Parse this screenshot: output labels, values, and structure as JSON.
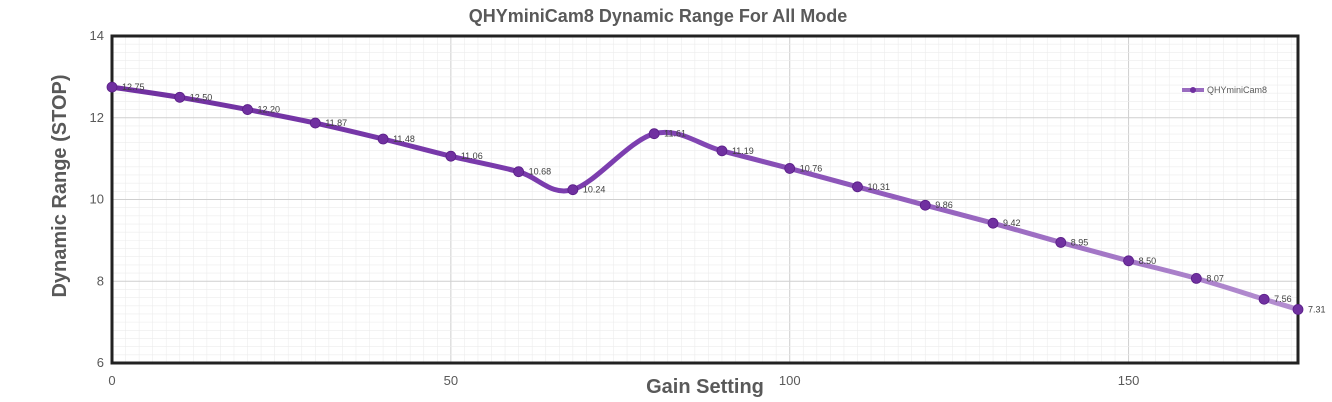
{
  "chart_data": {
    "type": "line",
    "title": "QHYminiCam8 Dynamic Range For All Mode",
    "xlabel": "Gain Setting",
    "ylabel": "Dynamic Range (STOP)",
    "xlim": [
      0,
      175
    ],
    "ylim": [
      6,
      14
    ],
    "xticks": [
      0,
      50,
      100,
      150
    ],
    "yticks": [
      6,
      8,
      10,
      12,
      14
    ],
    "grid": true,
    "legend_position": "top-right",
    "series": [
      {
        "name": "QHYminiCam8",
        "color": "#7030A0",
        "x": [
          0,
          10,
          20,
          30,
          40,
          50,
          60,
          68,
          80,
          90,
          100,
          110,
          120,
          130,
          140,
          150,
          160,
          170,
          175
        ],
        "values": [
          12.75,
          12.5,
          12.2,
          11.87,
          11.48,
          11.06,
          10.68,
          10.24,
          11.61,
          11.19,
          10.76,
          10.31,
          9.86,
          9.42,
          8.95,
          8.5,
          8.07,
          7.56,
          7.31
        ],
        "labels": [
          "12.75",
          "12.50",
          "12.20",
          "11.87",
          "11.48",
          "11.06",
          "10.68",
          "10.24",
          "11.61",
          "11.19",
          "10.76",
          "10.31",
          "9.86",
          "9.42",
          "8.95",
          "8.50",
          "8.07",
          "7.56",
          "7.31"
        ]
      }
    ]
  }
}
